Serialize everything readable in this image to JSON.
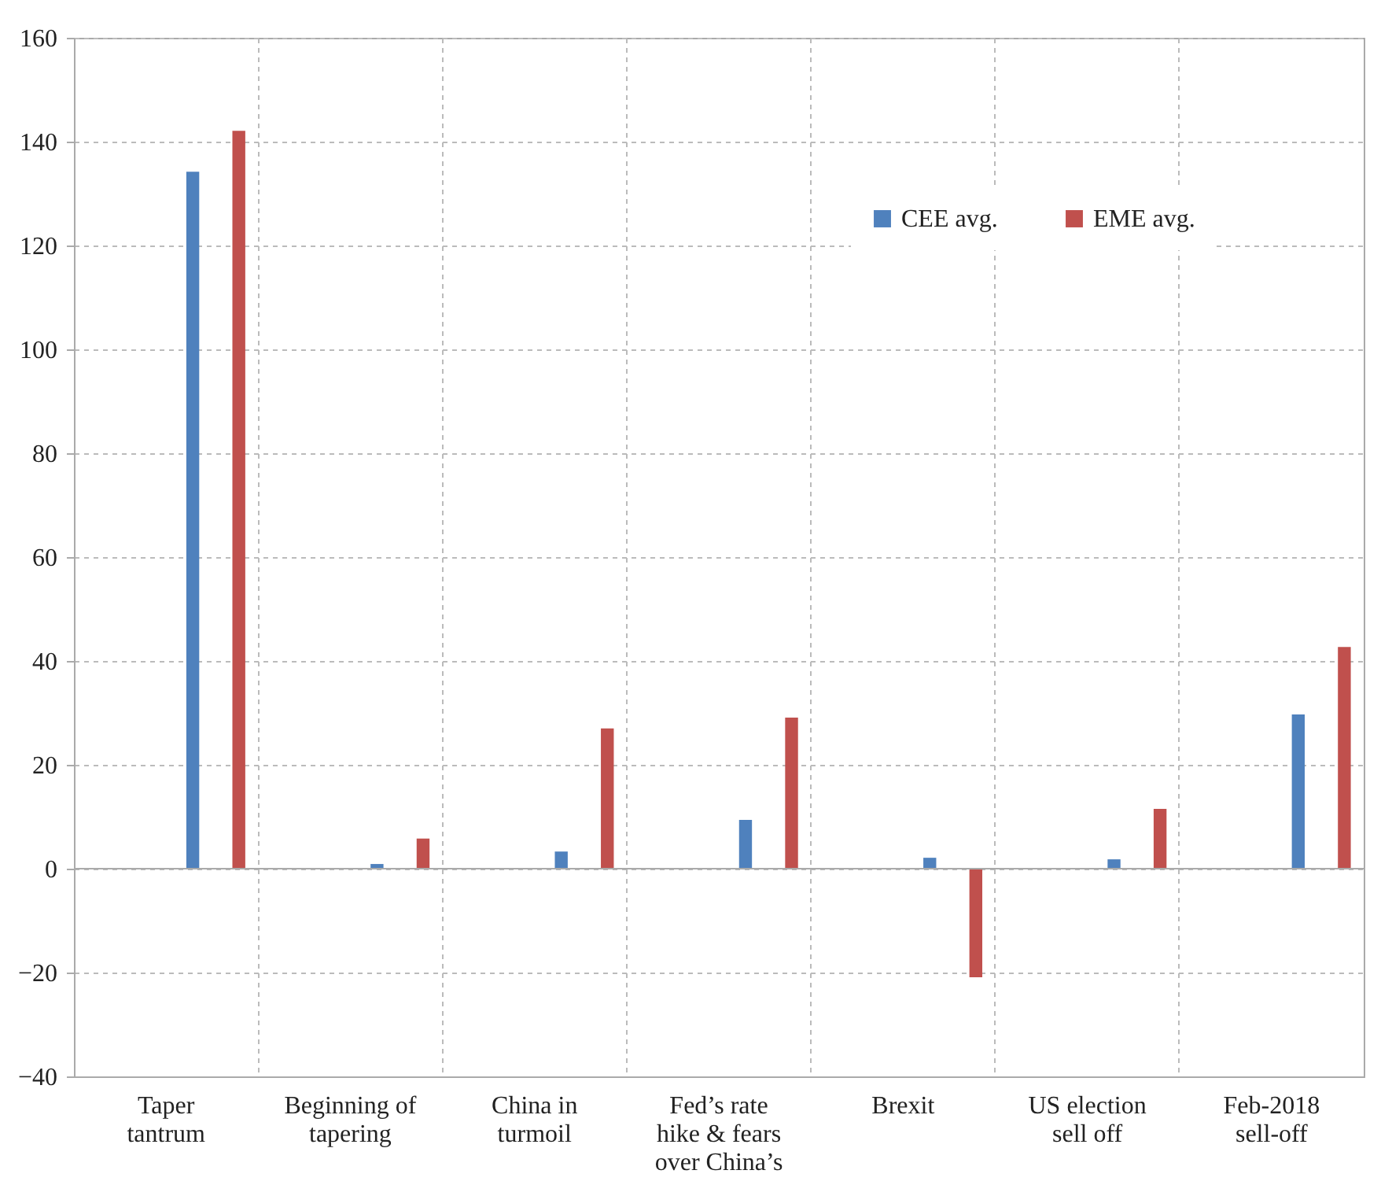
{
  "chart_data": {
    "type": "bar",
    "categories": [
      "Taper tantrum",
      "Beginning of tapering",
      "China in turmoil",
      "Fed’s rate hike & fears over China’s",
      "Brexit",
      "US election sell off",
      "Feb-2018 sell-off"
    ],
    "series": [
      {
        "name": "CEE avg.",
        "color": "#4f81bd",
        "values": [
          134.2,
          0.9,
          3.3,
          9.4,
          2.1,
          1.8,
          29.7
        ]
      },
      {
        "name": "EME avg.",
        "color": "#c0504d",
        "values": [
          142.1,
          5.8,
          27,
          29.1,
          -20.9,
          11.5,
          42.7
        ]
      }
    ],
    "ylim": [
      -40,
      160
    ],
    "yticks": [
      -40,
      -20,
      0,
      20,
      40,
      60,
      80,
      100,
      120,
      140,
      160
    ],
    "grid": true,
    "legend": "top right"
  }
}
